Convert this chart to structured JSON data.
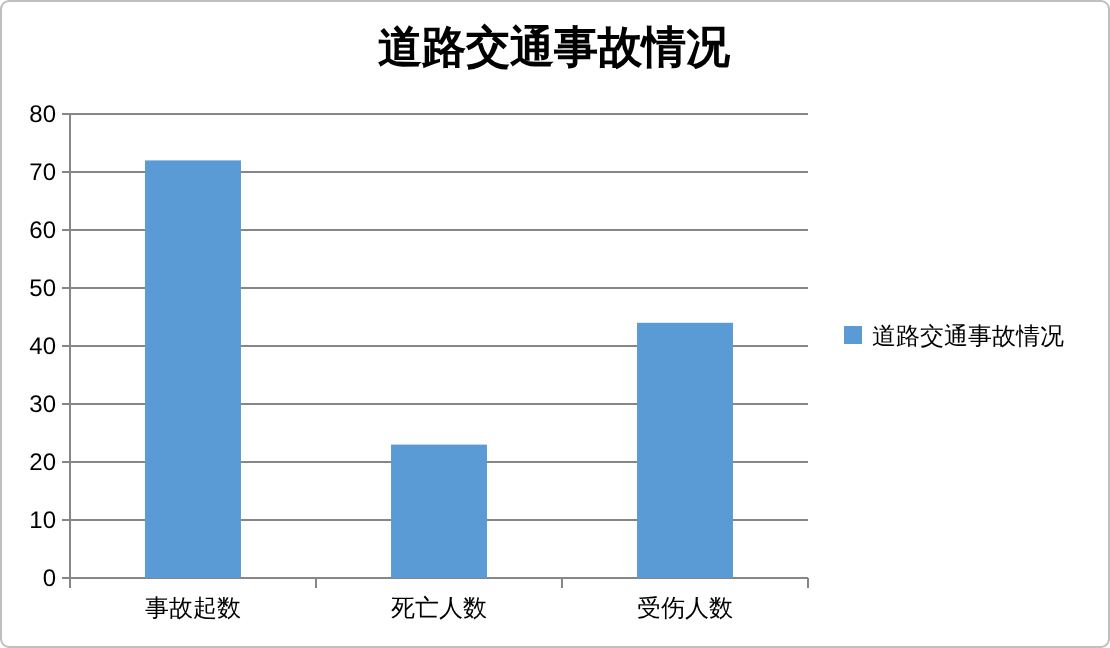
{
  "chart_data": {
    "type": "bar",
    "title": "道路交通事故情况",
    "categories": [
      "事故起数",
      "死亡人数",
      "受伤人数"
    ],
    "series": [
      {
        "name": "道路交通事故情况",
        "color": "#5b9bd5",
        "values": [
          72,
          23,
          44
        ]
      }
    ],
    "ylim": [
      0,
      80
    ],
    "yticks": [
      0,
      10,
      20,
      30,
      40,
      50,
      60,
      70,
      80
    ],
    "grid": "y",
    "legend": "right"
  }
}
